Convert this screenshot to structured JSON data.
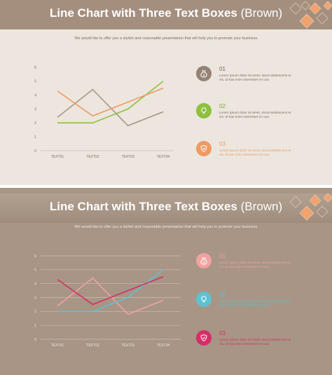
{
  "slides": [
    {
      "title_main": "Line Chart with Three Text Boxes",
      "title_paren": "(Brown)",
      "subtitle": "We would like to offer you a stylish and reasonable presentation that will help you to promote your business",
      "items": [
        {
          "num": "01",
          "text": "Lorem ipsum dolor sit amet, simul adolescens ei vis, id hax enim interesset ne uou",
          "icon": "money-bag-icon",
          "color": "#948274"
        },
        {
          "num": "02",
          "text": "Lorem ipsum dolor sit amet, simul adolescens ei vis, id hax enim interesset ne uou",
          "icon": "lightbulb-icon",
          "color": "#8fbf3f"
        },
        {
          "num": "03",
          "text": "Lorem ipsum dolor sit amet, simul adolescens ei vis, id hax enim interesset ne uou",
          "icon": "shield-icon",
          "color": "#ef9a62"
        }
      ]
    },
    {
      "title_main": "Line Chart with Three Text Boxes",
      "title_paren": "(Brown)",
      "subtitle": "We would like to offer you a stylish and reasonable presentation that will help you to promote your business",
      "items": [
        {
          "num": "01",
          "text": "Lorem ipsum dolor sit amet, simul adolescens ei vis, id hax enim interesset ne uou",
          "icon": "money-bag-icon",
          "color": "#f1a39f"
        },
        {
          "num": "02",
          "text": "Lorem ipsum dolor sit amet, simul adolescens ei vis, id hax enim interesset ne uou",
          "icon": "lightbulb-icon",
          "color": "#5cc3d1"
        },
        {
          "num": "03",
          "text": "Lorem ipsum dolor sit amet, simul adolescens ei vis, id hax enim interesset ne uou",
          "icon": "shield-icon",
          "color": "#d42f68"
        }
      ]
    }
  ],
  "chart_data": [
    {
      "type": "line",
      "categories": [
        "TEXT01",
        "TEXT02",
        "TEXT03",
        "TEXT04"
      ],
      "ylim": [
        0,
        6
      ],
      "yticks": [
        0,
        1,
        2,
        3,
        4,
        5,
        6
      ],
      "grid": false,
      "series": [
        {
          "values": [
            2.4,
            4.4,
            1.8,
            2.8
          ],
          "color": "#a8968a"
        },
        {
          "values": [
            2.0,
            2.0,
            3.0,
            5.0
          ],
          "color": "#8fbf3f"
        },
        {
          "values": [
            4.3,
            2.5,
            3.5,
            4.5
          ],
          "color": "#ef9a62"
        }
      ]
    },
    {
      "type": "line",
      "categories": [
        "TEXT01",
        "TEXT02",
        "TEXT03",
        "TEXT04"
      ],
      "ylim": [
        0,
        6
      ],
      "yticks": [
        0,
        1,
        2,
        3,
        4,
        5,
        6
      ],
      "grid": true,
      "series": [
        {
          "values": [
            2.4,
            4.4,
            1.8,
            2.8
          ],
          "color": "#f1a39f"
        },
        {
          "values": [
            2.0,
            2.0,
            3.0,
            5.0
          ],
          "color": "#5cc3d1"
        },
        {
          "values": [
            4.3,
            2.5,
            3.5,
            4.5
          ],
          "color": "#d42f68"
        }
      ]
    }
  ]
}
